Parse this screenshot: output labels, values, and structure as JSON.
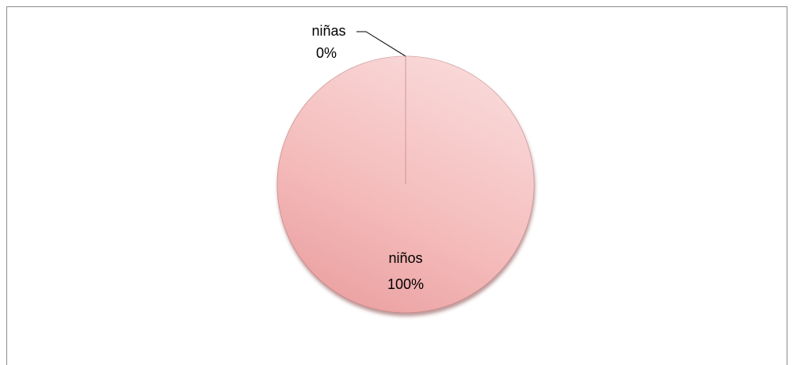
{
  "chart_data": {
    "type": "pie",
    "categories": [
      "niñas",
      "niños"
    ],
    "values": [
      0,
      100
    ],
    "value_labels": [
      "0%",
      "100%"
    ],
    "colors": [
      "#f3b0b0",
      "#f3b0b0"
    ]
  }
}
